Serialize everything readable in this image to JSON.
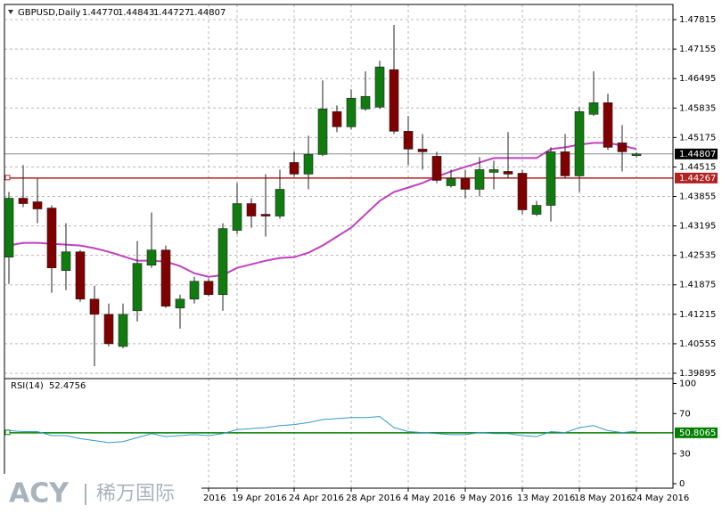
{
  "chart_data": [
    {
      "type": "candlestick",
      "symbol": "GBPUSD,Daily",
      "ohlc_labels": [
        "1.44770",
        "1.44843",
        "1.44727",
        "1.44807"
      ],
      "categories": [
        null,
        null,
        null,
        null,
        null,
        null,
        null,
        null,
        null,
        null,
        null,
        null,
        null,
        null,
        "2016",
        null,
        "19 Apr 2016",
        null,
        null,
        null,
        "24 Apr 2016",
        null,
        null,
        null,
        "28 Apr 2016",
        null,
        null,
        null,
        "4 May 2016",
        null,
        null,
        null,
        "9 May 2016",
        null,
        null,
        null,
        "13 May 2016",
        null,
        null,
        null,
        "18 May 2016",
        null,
        null,
        null,
        "24 May 2016"
      ],
      "open": [
        1.42495,
        1.43815,
        1.43735,
        1.43595,
        1.42195,
        1.42615,
        1.41555,
        1.41215,
        1.40495,
        1.41295,
        1.42315,
        1.42655,
        1.41355,
        1.41555,
        1.41955,
        1.41655,
        1.43095,
        1.43695,
        1.43455,
        1.43415,
        1.44615,
        1.44355,
        1.44795,
        1.45755,
        1.45415,
        1.45815,
        1.45855,
        1.46695,
        1.45315,
        1.44915,
        1.44755,
        1.44095,
        1.44255,
        1.44015,
        1.44395,
        1.44415,
        1.44375,
        1.43455,
        1.43655,
        1.44855,
        1.44315,
        1.45695,
        1.45955,
        1.45055,
        1.4477
      ],
      "high": [
        1.43955,
        1.44555,
        1.44255,
        1.43655,
        1.43255,
        1.42655,
        1.41855,
        1.41455,
        1.41455,
        1.42855,
        1.43495,
        1.42755,
        1.41655,
        1.42055,
        1.42015,
        1.43255,
        1.44155,
        1.43815,
        1.44355,
        1.44455,
        1.44855,
        1.45215,
        1.46455,
        1.45895,
        1.46255,
        1.46655,
        1.46895,
        1.47695,
        1.45655,
        1.45255,
        1.44855,
        1.44455,
        1.44455,
        1.44735,
        1.44655,
        1.45295,
        1.44455,
        1.43755,
        1.44955,
        1.45255,
        1.45855,
        1.46655,
        1.46155,
        1.45455,
        1.44843
      ],
      "low": [
        1.41895,
        1.43615,
        1.43255,
        1.41695,
        1.41755,
        1.41495,
        1.40055,
        1.40495,
        1.40455,
        1.41055,
        1.42255,
        1.41355,
        1.40895,
        1.41455,
        1.41615,
        1.41295,
        1.43015,
        1.43155,
        1.42955,
        1.43355,
        1.44295,
        1.44015,
        1.44755,
        1.45295,
        1.45355,
        1.45775,
        1.45815,
        1.45255,
        1.44555,
        1.44455,
        1.44155,
        1.44055,
        1.43815,
        1.43855,
        1.44015,
        1.44255,
        1.43455,
        1.43415,
        1.43295,
        1.44255,
        1.43955,
        1.45655,
        1.44895,
        1.44415,
        1.44727
      ],
      "close": [
        1.43815,
        1.43695,
        1.43575,
        1.42255,
        1.42615,
        1.41555,
        1.41215,
        1.40555,
        1.41215,
        1.42355,
        1.42655,
        1.41395,
        1.41555,
        1.41955,
        1.41655,
        1.43135,
        1.43695,
        1.43415,
        1.43415,
        1.44015,
        1.44355,
        1.44795,
        1.45815,
        1.45415,
        1.46055,
        1.46095,
        1.46755,
        1.45315,
        1.44915,
        1.44855,
        1.44215,
        1.44255,
        1.44015,
        1.44455,
        1.44455,
        1.44355,
        1.43555,
        1.43655,
        1.44855,
        1.44315,
        1.45755,
        1.45955,
        1.44955,
        1.44855,
        1.44807
      ],
      "bull_color": "#107c10",
      "bear_color": "#800000",
      "ma": {
        "color": "#c040c0",
        "values": [
          1.42755,
          1.42815,
          1.42815,
          1.42795,
          1.42775,
          1.42755,
          1.42695,
          1.42615,
          1.42515,
          1.42415,
          1.42415,
          1.42395,
          1.42295,
          1.42135,
          1.42055,
          1.42095,
          1.42255,
          1.42335,
          1.42415,
          1.42475,
          1.42495,
          1.42595,
          1.42755,
          1.42955,
          1.43155,
          1.43455,
          1.43755,
          1.43955,
          1.44055,
          1.44155,
          1.44295,
          1.44415,
          1.44515,
          1.44615,
          1.44715,
          1.44715,
          1.44715,
          1.44715,
          1.44915,
          1.44955,
          1.45015,
          1.45055,
          1.45055,
          1.44995,
          1.44915
        ]
      },
      "level": {
        "value": 1.44267,
        "color": "#b22222"
      },
      "ylim": [
        1.39775,
        1.48155
      ],
      "yticks": [
        1.47815,
        1.47155,
        1.46495,
        1.45835,
        1.45175,
        1.44515,
        1.43855,
        1.43195,
        1.42535,
        1.41875,
        1.41215,
        1.40555,
        1.39895
      ],
      "grid": true
    },
    {
      "type": "line",
      "name": "RSI(14)",
      "current": 52.4756,
      "color": "#3399cc",
      "values": [
        53,
        52,
        52,
        48,
        48,
        45,
        43,
        41,
        42,
        46,
        50,
        47,
        48,
        49,
        48,
        50,
        54,
        55,
        56,
        58,
        59,
        61,
        64,
        65,
        66,
        66,
        67,
        56,
        52,
        51,
        50,
        49,
        49,
        51,
        50,
        50,
        48,
        47,
        52,
        51,
        56,
        58,
        53,
        51,
        52.4756
      ],
      "level": {
        "value": 50.8065,
        "color": "#008000"
      },
      "ylim": [
        -8,
        104
      ],
      "yticks": [
        100,
        70,
        30,
        0
      ]
    }
  ],
  "watermark": {
    "brand": "ACY",
    "name": "稀万国际"
  }
}
